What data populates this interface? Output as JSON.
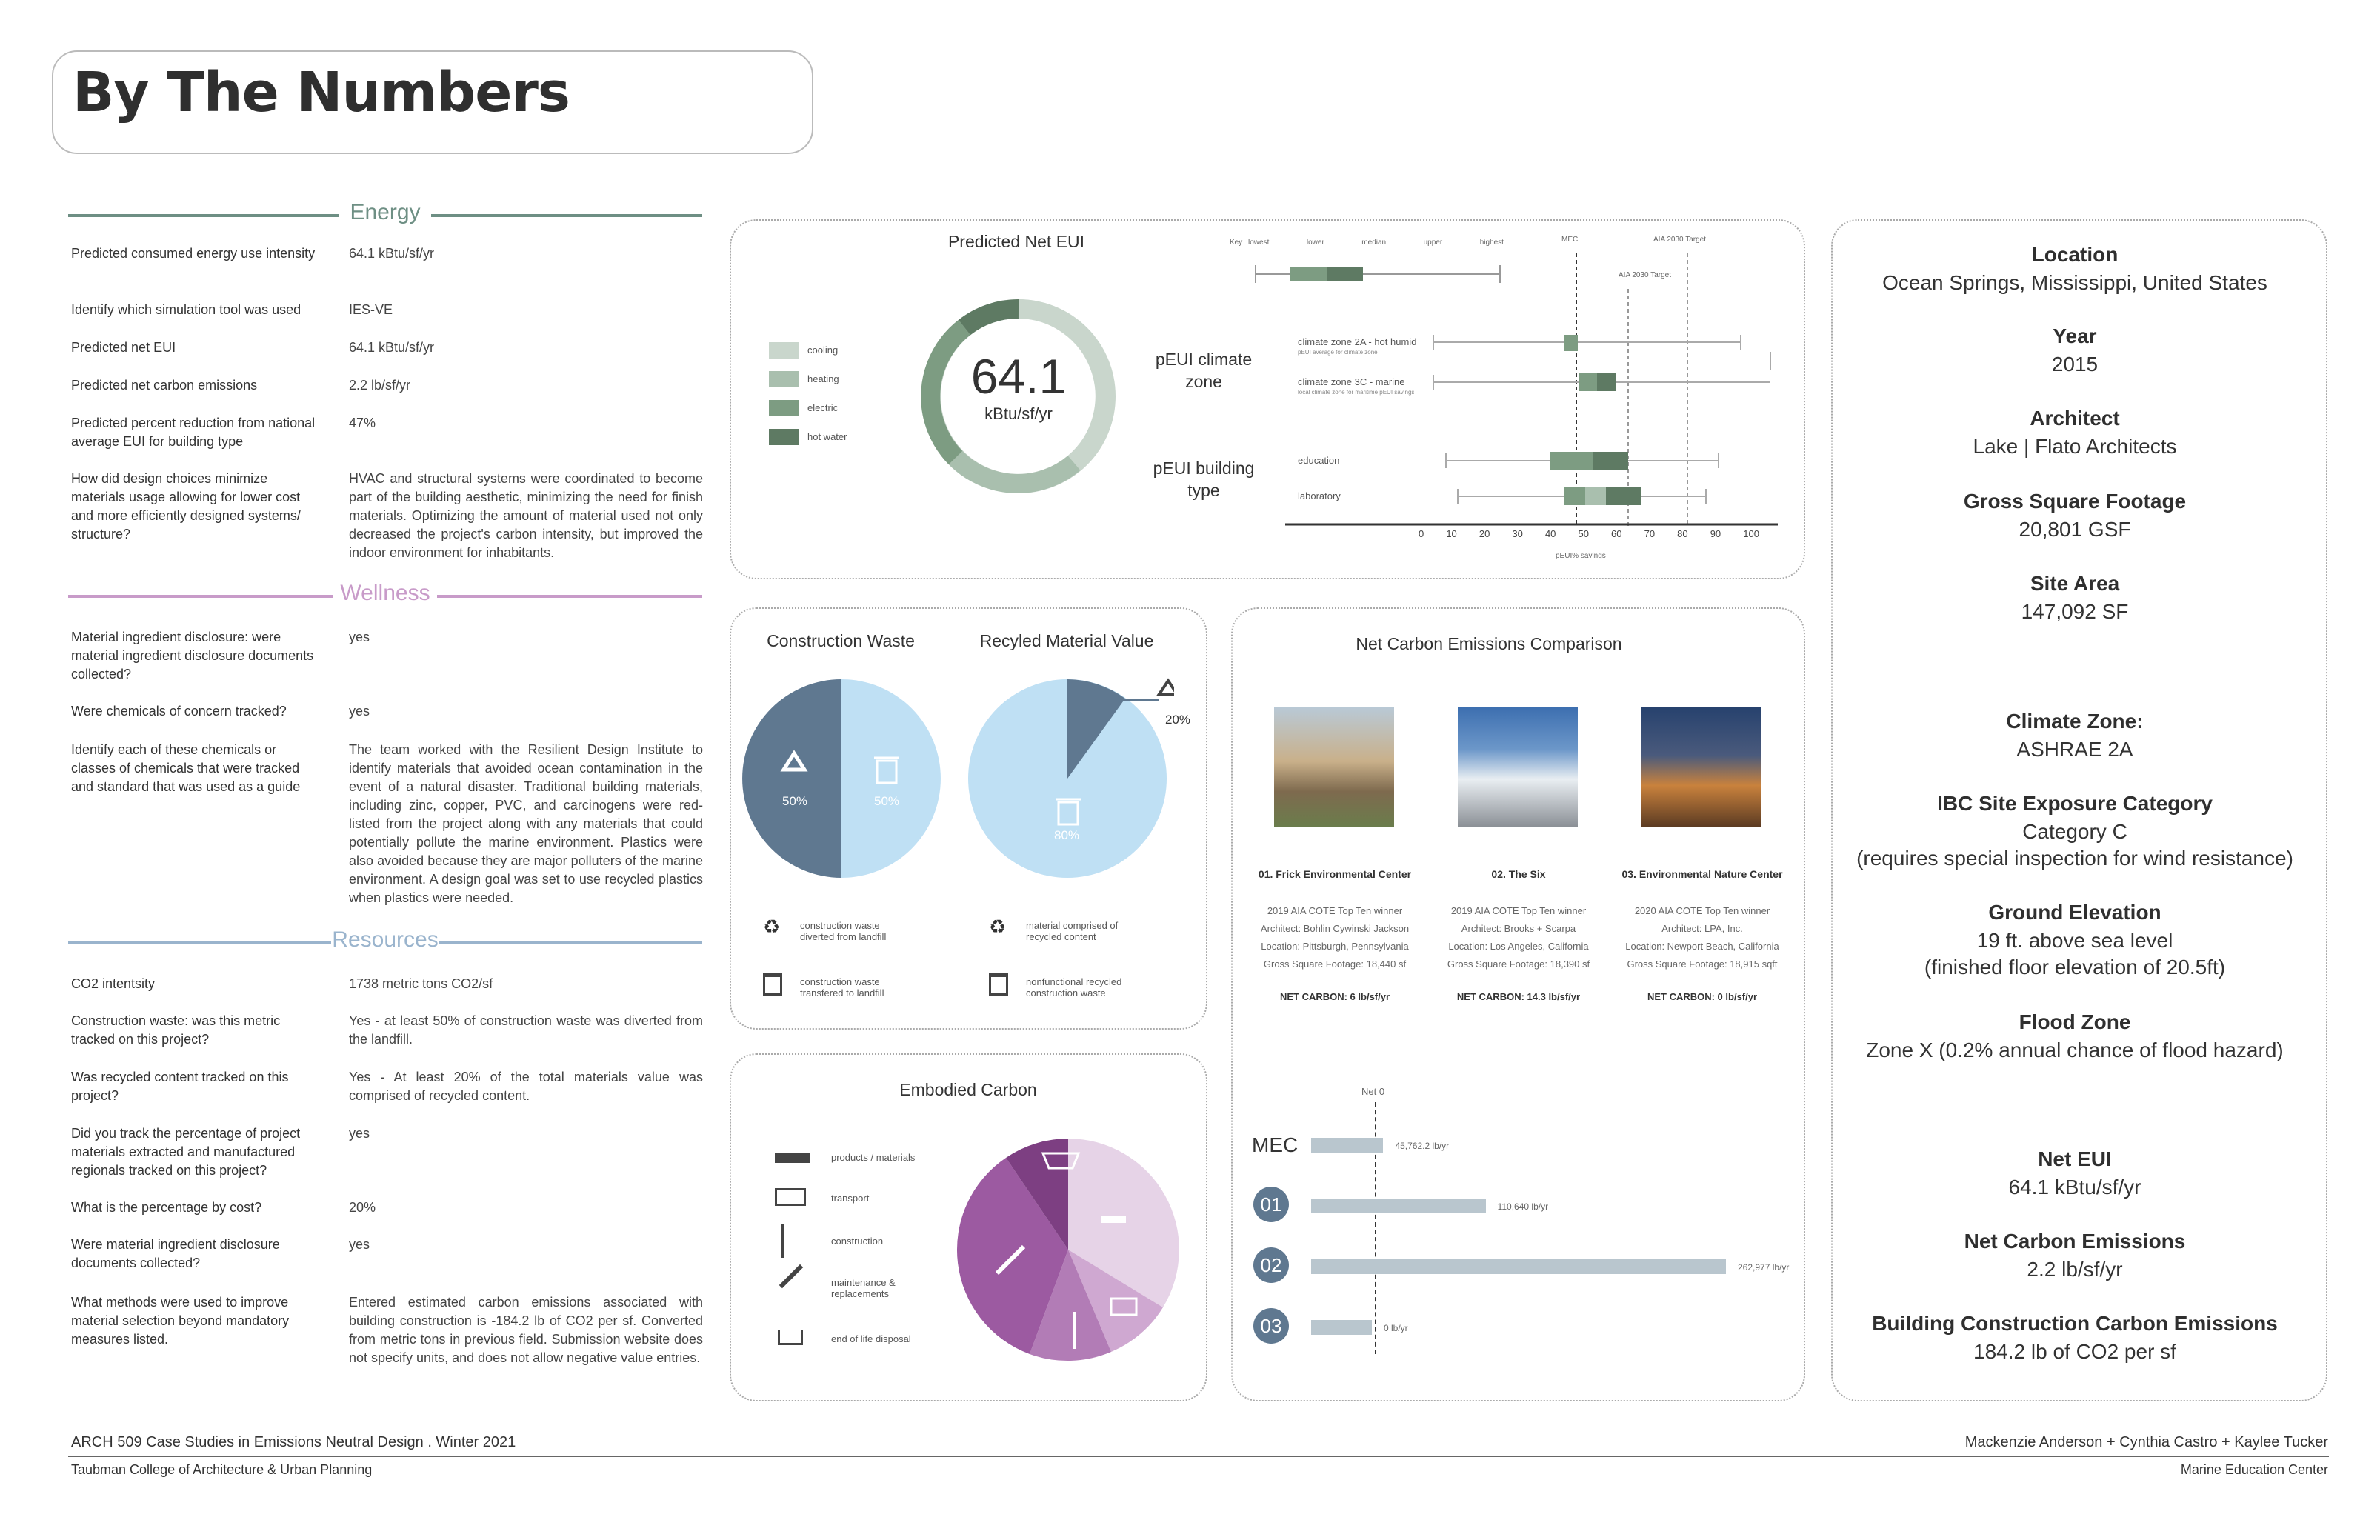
{
  "title": "By The Numbers",
  "colors": {
    "energy": "#6e8f84",
    "wellness": "#c89bc9",
    "resources": "#9ab4cd",
    "cooling": "#c9d6cc",
    "heating": "#a9bfae",
    "electric": "#7d9c82",
    "hotwater": "#5e7a63",
    "waste_dark": "#5f7890",
    "waste_light": "#bfe0f4",
    "ec1": "#7d3f82",
    "ec2": "#9c5aa1",
    "ec3": "#b27cb6",
    "ec4": "#cfa8d1",
    "ec5": "#e6d3e7"
  },
  "energy": {
    "heading": "Energy",
    "rows": [
      {
        "q": "Predicted consumed energy use intensity",
        "a": "64.1 kBtu/sf/yr"
      },
      {
        "q": "Identify which simulation tool was used",
        "a": "IES-VE"
      },
      {
        "q": "Predicted net EUI",
        "a": "64.1 kBtu/sf/yr"
      },
      {
        "q": "Predicted net carbon emissions",
        "a": "2.2 lb/sf/yr"
      },
      {
        "q": "Predicted percent reduction from national average EUI for building type",
        "a": "47%"
      },
      {
        "q": "How did design choices minimize materials usage allowing for lower cost and more efficiently designed systems/ structure?",
        "a": "HVAC and structural systems were coordinated to become part of the building aesthetic, minimizing the need for finish materials. Optimizing the amount of material used not only decreased the project's carbon intensity, but improved the indoor environment for inhabitants."
      }
    ]
  },
  "wellness": {
    "heading": "Wellness",
    "rows": [
      {
        "q": "Material ingredient disclosure: were material ingredient disclosure documents collected?",
        "a": "yes"
      },
      {
        "q": "Were chemicals of concern tracked?",
        "a": "yes"
      },
      {
        "q": "Identify each of these chemicals or classes of chemicals that were tracked and standard that was used as a guide",
        "a": "The team worked with the Resilient Design Institute to identify materials that avoided ocean contamination in the event of a natural disaster. Traditional building materials, including zinc, copper, PVC, and carcinogens were red-listed from the project along with any materials that could potentially pollute the marine environment. Plastics were also avoided because they are major polluters of the marine environment. A design goal was set to use recycled plastics when plastics were needed."
      }
    ]
  },
  "resources": {
    "heading": "Resources",
    "rows": [
      {
        "q": "CO2 intentsity",
        "a": "1738 metric tons CO2/sf"
      },
      {
        "q": "Construction waste: was this metric tracked on this project?",
        "a": "Yes - at least 50% of construction waste was diverted from the landfill."
      },
      {
        "q": "Was recycled content tracked on this project?",
        "a": "Yes - At least 20% of the total materials value was comprised of recycled content."
      },
      {
        "q": "Did you track the percentage of project materials extracted and manufactured regionals tracked on this project?",
        "a": "yes"
      },
      {
        "q": "What is the percentage by cost?",
        "a": "20%"
      },
      {
        "q": "Were material ingredient disclosure documents collected?",
        "a": "yes"
      },
      {
        "q": "What methods were used to improve material selection beyond mandatory measures listed.",
        "a": "Entered estimated carbon emissions associated with building construction is -184.2 lb of CO2 per sf. Converted from metric tons in previous field. Submission website does not specify units, and does not allow negative value entries."
      }
    ]
  },
  "eui_panel": {
    "title": "Predicted Net EUI",
    "value": "64.1",
    "unit": "kBtu/sf/yr",
    "legend": [
      "cooling",
      "heating",
      "electric",
      "hot water"
    ],
    "key_label": "Key",
    "key_ticks": [
      "lowest",
      "lower",
      "median",
      "upper",
      "highest"
    ],
    "markers": {
      "mec": "MEC",
      "aia_top": "AIA 2030 Target",
      "aia_mid": "AIA 2030 Target"
    },
    "group1": "pEUI climate zone",
    "group2": "pEUI building type",
    "rows": [
      {
        "label": "climate zone 2A - hot humid",
        "sub": "pEUI average for climate zone"
      },
      {
        "label": "climate zone 3C - marine",
        "sub": "local climate zone for maritime pEUI savings"
      },
      {
        "label": "education",
        "sub": ""
      },
      {
        "label": "laboratory",
        "sub": ""
      }
    ],
    "axis": [
      "0",
      "10",
      "20",
      "30",
      "40",
      "50",
      "60",
      "70",
      "80",
      "90",
      "100"
    ],
    "axis_label": "pEUI% savings"
  },
  "waste_panel": {
    "title1": "Construction Waste",
    "title2": "Recyled Material Value",
    "p1a": "50%",
    "p1b": "50%",
    "p2a": "20%",
    "p2b": "80%",
    "leg1": "construction waste diverted from landfill",
    "leg2": "construction waste transfered to landfill",
    "leg3": "material comprised of recycled content",
    "leg4": "nonfunctional recycled construction waste"
  },
  "embodied": {
    "title": "Embodied Carbon",
    "items": [
      "products / materials",
      "transport",
      "construction",
      "maintenance & replacements",
      "end of life disposal"
    ]
  },
  "carbon_panel": {
    "title": "Net Carbon Emissions Comparison",
    "cases": [
      {
        "name": "01. Frick Environmental Center",
        "l1": "2019 AIA COTE Top Ten winner",
        "l2": "Architect: Bohlin Cywinski Jackson",
        "l3": "Location: Pittsburgh, Pennsylvania",
        "l4": "Gross Square Footage: 18,440 sf",
        "nc": "NET CARBON: 6 lb/sf/yr"
      },
      {
        "name": "02. The Six",
        "l1": "2019 AIA COTE Top Ten winner",
        "l2": "Architect: Brooks + Scarpa",
        "l3": "Location: Los Angeles, California",
        "l4": "Gross Square Footage: 18,390 sf",
        "nc": "NET CARBON: 14.3 lb/sf/yr"
      },
      {
        "name": "03. Environmental Nature Center",
        "l1": "2020 AIA COTE Top Ten winner",
        "l2": "Architect: LPA, Inc.",
        "l3": "Location: Newport Beach, California",
        "l4": "Gross Square Footage: 18,915 sqft",
        "nc": "NET CARBON: 0 lb/sf/yr"
      }
    ],
    "net0": "Net 0",
    "bars": [
      {
        "label": "MEC",
        "value": 45762.2,
        "text": "45,762.2 lb/yr"
      },
      {
        "label": "01",
        "value": 110640,
        "text": "110,640 lb/yr"
      },
      {
        "label": "02",
        "value": 262977,
        "text": "262,977 lb/yr"
      },
      {
        "label": "03",
        "value": 0,
        "text": "0 lb/yr"
      }
    ],
    "bar_max": 262977
  },
  "info": [
    {
      "h": "Location",
      "v": "Ocean Springs, Mississippi, United States"
    },
    {
      "h": "Year",
      "v": "2015"
    },
    {
      "h": "Architect",
      "v": "Lake | Flato Architects"
    },
    {
      "h": "Gross Square Footage",
      "v": "20,801 GSF"
    },
    {
      "h": "Site Area",
      "v": "147,092 SF"
    },
    {
      "h": "Climate Zone:",
      "v": "ASHRAE 2A"
    },
    {
      "h": "IBC Site Exposure Category",
      "v": "Category C\n(requires special inspection for wind resistance)"
    },
    {
      "h": "Ground Elevation",
      "v": "19 ft. above sea level\n(finished floor elevation of 20.5ft)"
    },
    {
      "h": "Flood Zone",
      "v": "Zone X (0.2% annual chance of flood hazard)"
    },
    {
      "h": "Net EUI",
      "v": "64.1 kBtu/sf/yr"
    },
    {
      "h": "Net Carbon Emissions",
      "v": "2.2 lb/sf/yr"
    },
    {
      "h": "Building Construction Carbon Emissions",
      "v": "184.2 lb of CO2 per sf"
    }
  ],
  "footer": {
    "left1": "ARCH 509  Case Studies in Emissions Neutral Design  .  Winter 2021",
    "left2": "Taubman College of Architecture & Urban Planning",
    "right1": "Mackenzie Anderson + Cynthia Castro + Kaylee Tucker",
    "right2": "Marine Education Center"
  }
}
